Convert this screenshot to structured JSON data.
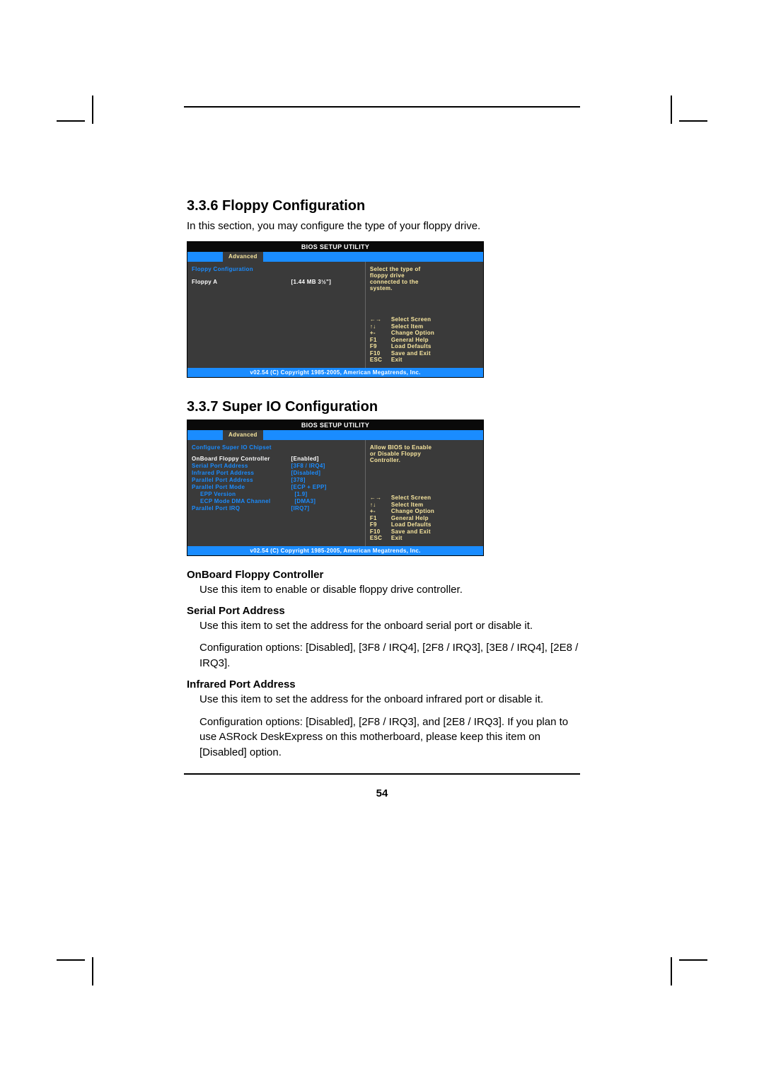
{
  "page": {
    "number": "54",
    "colors": {
      "bios_header_bg": "#0a0a0a",
      "bios_tabbar_bg": "#1a8cff",
      "bios_body_bg": "#3a3a3a",
      "bios_yellow": "#f9e79f",
      "bios_blue": "#1a8cff",
      "bios_white": "#ffffff",
      "bios_footer_bg": "#1a8cff",
      "page_bg": "#ffffff",
      "text": "#000000"
    }
  },
  "section1": {
    "title": "3.3.6 Floppy Configuration",
    "intro": "In this section, you may configure the type of your floppy drive."
  },
  "bios1": {
    "header": "BIOS SETUP UTILITY",
    "tab": "Advanced",
    "left_title": "Floppy Configuration",
    "rows": [
      {
        "label": "Floppy A",
        "value": "[1.44 MB 3½\"]"
      }
    ],
    "help_top": [
      "Select the type of",
      "floppy drive",
      "connected to the",
      "system."
    ],
    "help_keys": [
      {
        "key": "←→",
        "text": "Select Screen"
      },
      {
        "key": "↑↓",
        "text": "Select Item"
      },
      {
        "key": "+-",
        "text": "Change Option"
      },
      {
        "key": "F1",
        "text": "General Help"
      },
      {
        "key": "F9",
        "text": "Load Defaults"
      },
      {
        "key": "F10",
        "text": "Save and Exit"
      },
      {
        "key": "ESC",
        "text": "Exit"
      }
    ],
    "footer": "v02.54 (C) Copyright 1985-2005, American Megatrends, Inc."
  },
  "section2": {
    "title": "3.3.7 Super IO Configuration"
  },
  "bios2": {
    "header": "BIOS SETUP UTILITY",
    "tab": "Advanced",
    "left_title": "Configure Super IO Chipset",
    "rows": [
      {
        "label": "OnBoard Floppy Controller",
        "value": "[Enabled]",
        "highlight": true
      },
      {
        "label": "Serial Port Address",
        "value": "[3F8 / IRQ4]"
      },
      {
        "label": "Infrared Port Address",
        "value": "[Disabled]"
      },
      {
        "label": "Parallel Port Address",
        "value": "[378]"
      },
      {
        "label": "Parallel Port Mode",
        "value": "[ECP + EPP]"
      },
      {
        "label": "EPP Version",
        "value": "[1.9]",
        "indent": true
      },
      {
        "label": "ECP Mode DMA Channel",
        "value": "[DMA3]",
        "indent": true
      },
      {
        "label": "Parallel Port IRQ",
        "value": "[IRQ7]"
      }
    ],
    "help_top": [
      "Allow BIOS to Enable",
      "or Disable Floppy",
      "Controller."
    ],
    "help_keys": [
      {
        "key": "←→",
        "text": "Select Screen"
      },
      {
        "key": "↑↓",
        "text": "Select Item"
      },
      {
        "key": "+-",
        "text": "Change Option"
      },
      {
        "key": "F1",
        "text": "General Help"
      },
      {
        "key": "F9",
        "text": "Load Defaults"
      },
      {
        "key": "F10",
        "text": "Save and Exit"
      },
      {
        "key": "ESC",
        "text": "Exit"
      }
    ],
    "footer": "v02.54 (C) Copyright 1985-2005, American Megatrends, Inc."
  },
  "descriptions": [
    {
      "heading": "OnBoard Floppy Controller",
      "paras": [
        "Use this item to enable or disable floppy drive controller."
      ]
    },
    {
      "heading": "Serial Port Address",
      "paras": [
        "Use this item to set the address for the onboard serial port or disable it.",
        "Configuration options: [Disabled], [3F8 / IRQ4], [2F8 / IRQ3], [3E8 / IRQ4], [2E8 / IRQ3]."
      ]
    },
    {
      "heading": "Infrared Port Address",
      "paras": [
        "Use this item to set the address for the onboard infrared port or disable it.",
        "Configuration options: [Disabled], [2F8 / IRQ3], and [2E8 / IRQ3]. If you plan to use ASRock DeskExpress on this motherboard, please keep this item on [Disabled] option."
      ]
    }
  ]
}
